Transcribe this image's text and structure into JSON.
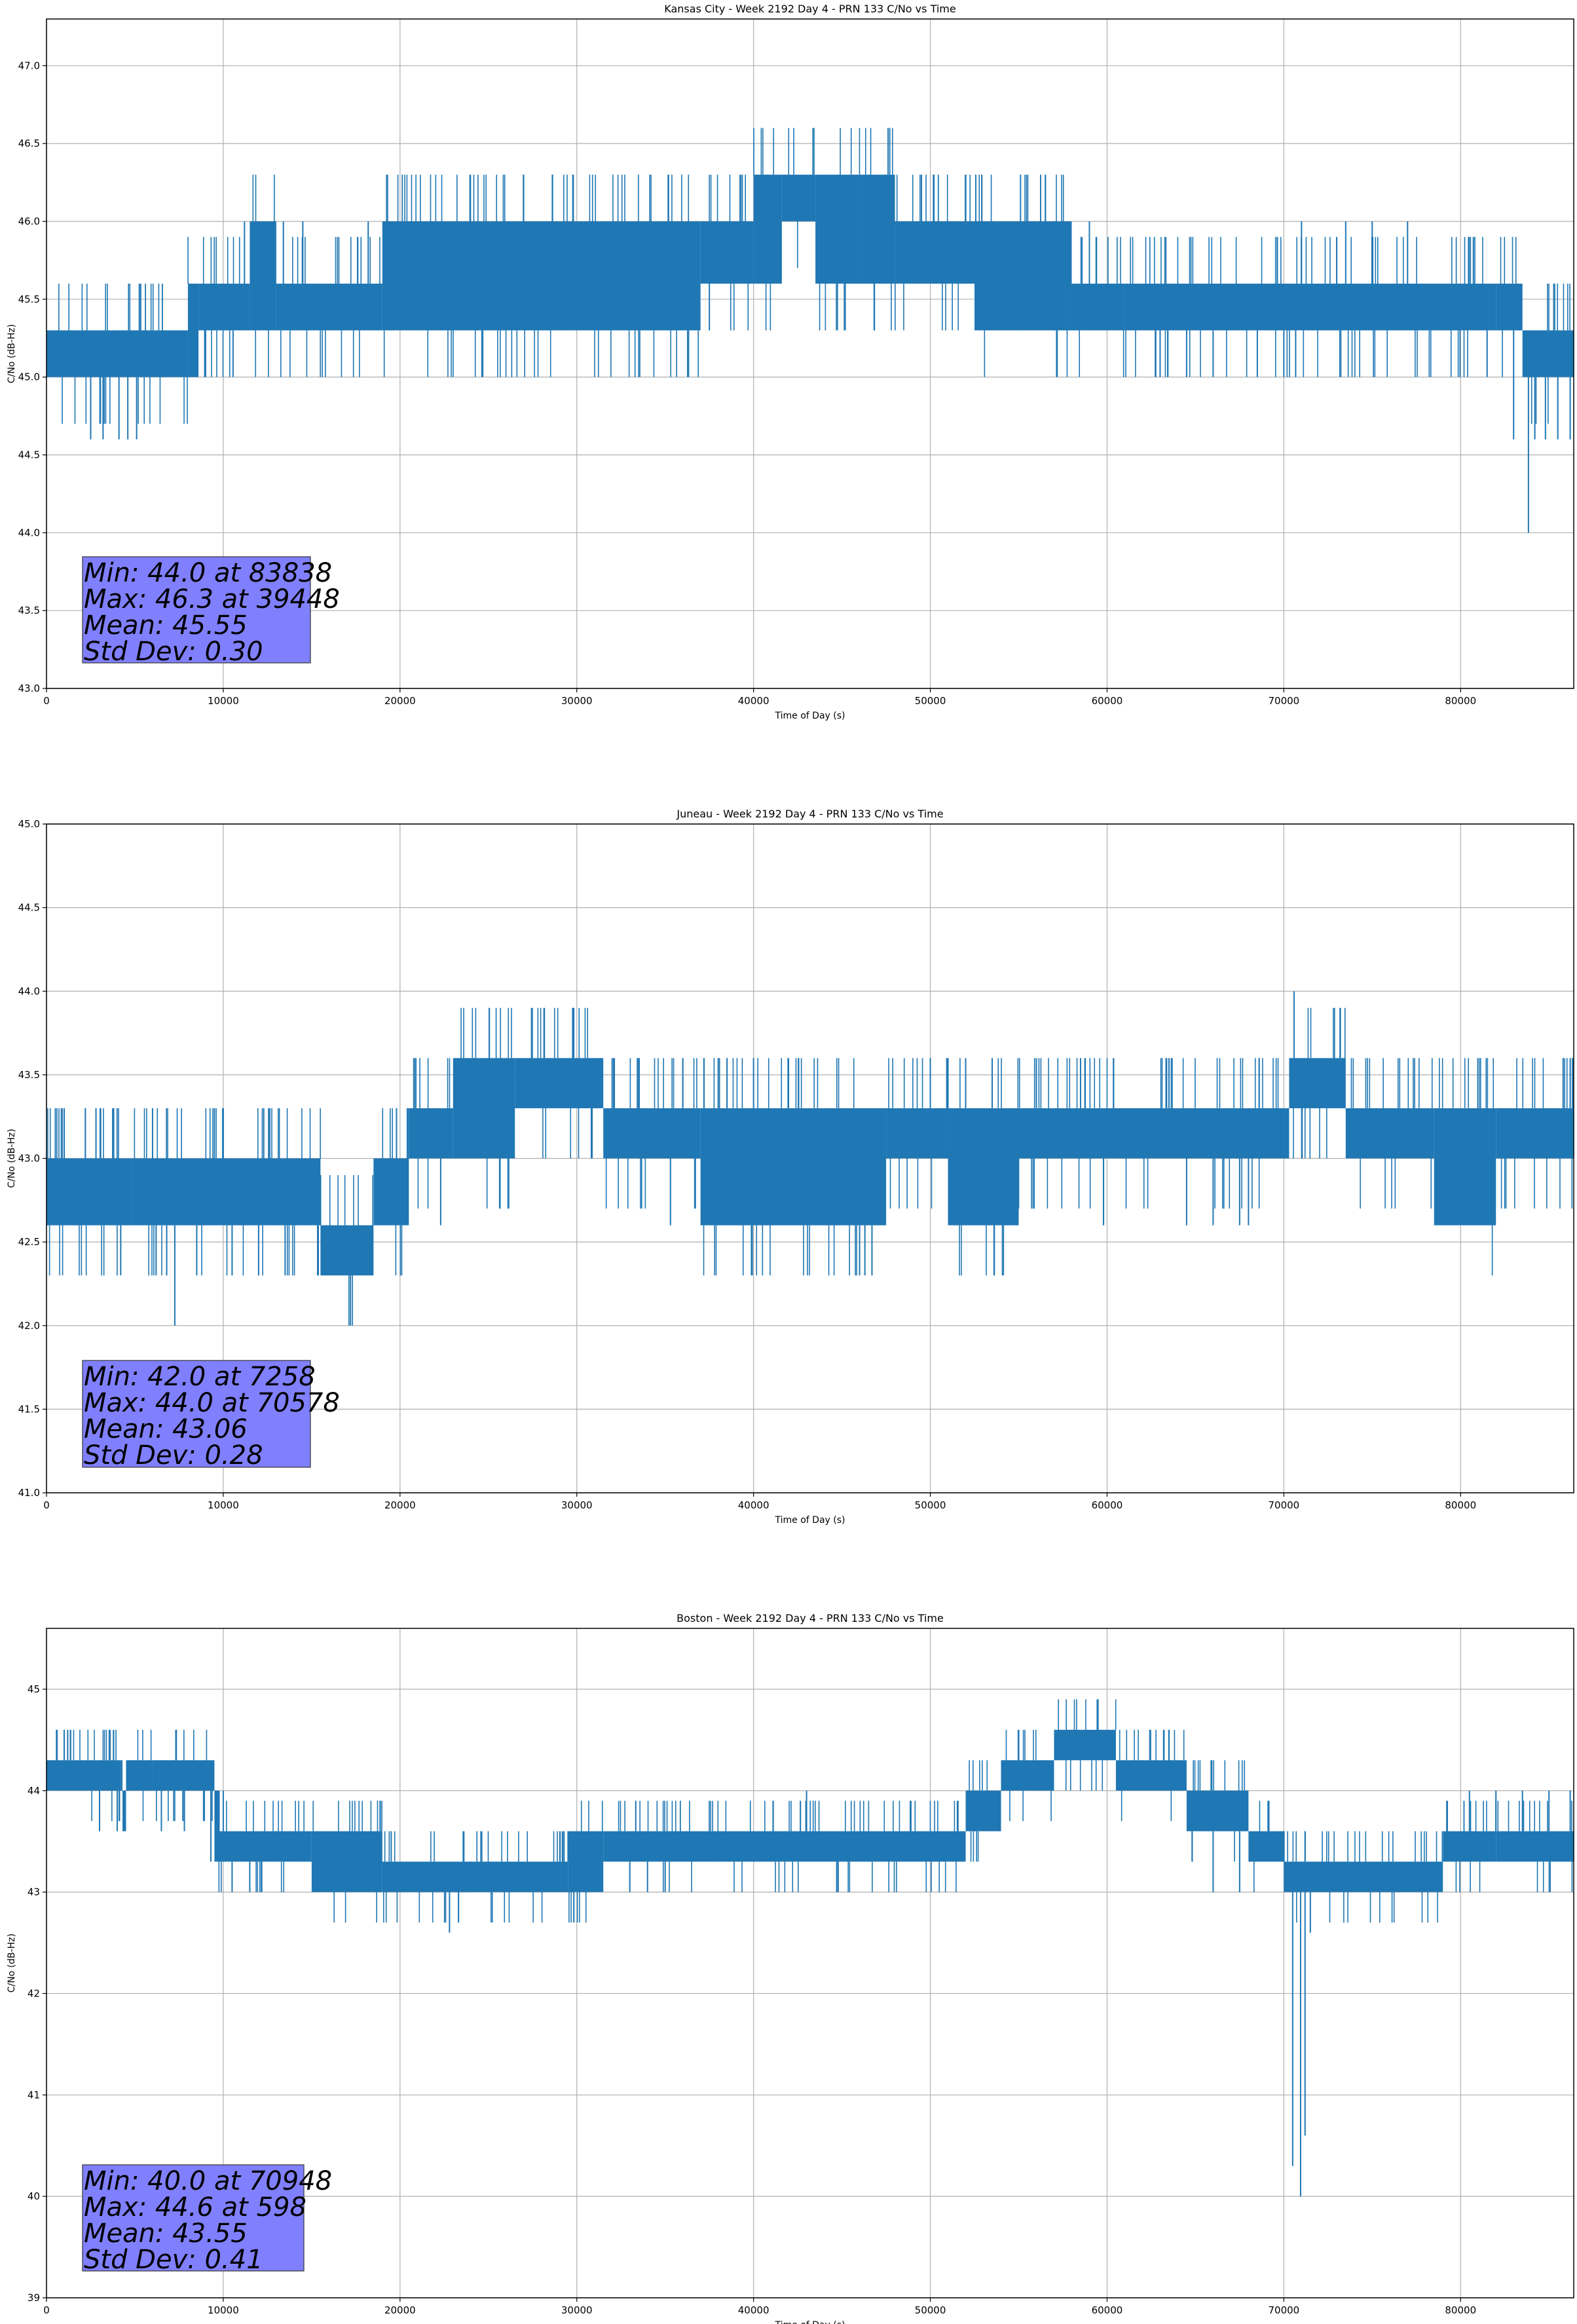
{
  "chart_data": [
    {
      "type": "line",
      "title": "Kansas City - Week 2192 Day 4 - PRN 133 C/No vs Time",
      "xlabel": "Time of Day (s)",
      "ylabel": "C/No (dB-Hz)",
      "xlim": [
        0,
        86400
      ],
      "ylim": [
        43.0,
        47.3
      ],
      "xticks": [
        0,
        10000,
        20000,
        30000,
        40000,
        50000,
        60000,
        70000,
        80000
      ],
      "yticks": [
        43.0,
        43.5,
        44.0,
        44.5,
        45.0,
        45.5,
        46.0,
        46.5,
        47.0
      ],
      "ytick_decimals": 1,
      "grid": true,
      "color": "#1f77b4",
      "stats": [
        "Min: 44.0 at 83838",
        "Max: 46.3 at 39448",
        "Mean: 45.55",
        "Std Dev: 0.30"
      ],
      "series": [
        {
          "levels": [
            [
              0,
              45.3,
              45.0
            ],
            [
              8000,
              45.6,
              45.0
            ],
            [
              8600,
              45.6,
              45.3
            ],
            [
              11500,
              46.0,
              45.3
            ],
            [
              13000,
              45.6,
              45.3
            ],
            [
              19000,
              46.0,
              45.3
            ],
            [
              37000,
              46.0,
              45.6
            ],
            [
              40000,
              46.3,
              45.6
            ],
            [
              41600,
              46.3,
              46.0
            ],
            [
              43500,
              46.3,
              45.6
            ],
            [
              46200,
              46.3,
              45.6
            ],
            [
              48000,
              46.0,
              45.6
            ],
            [
              52500,
              46.0,
              45.3
            ],
            [
              58000,
              45.6,
              45.3
            ],
            [
              61000,
              45.6,
              45.3
            ],
            [
              82000,
              45.6,
              45.3
            ],
            [
              83500,
              45.3,
              45.0
            ],
            [
              86400,
              45.3,
              45.0
            ]
          ],
          "spikes": [
            [
              2500,
              44.6
            ],
            [
              3200,
              44.6
            ],
            [
              4100,
              44.6
            ],
            [
              4600,
              44.6
            ],
            [
              5100,
              44.6
            ],
            [
              9000,
              45.0
            ],
            [
              11200,
              46.0
            ],
            [
              11800,
              46.0
            ],
            [
              12500,
              46.0
            ],
            [
              13400,
              46.0
            ],
            [
              14500,
              46.0
            ],
            [
              15000,
              45.3
            ],
            [
              17500,
              45.3
            ],
            [
              18200,
              46.0
            ],
            [
              19500,
              46.0
            ],
            [
              21000,
              46.0
            ],
            [
              37500,
              45.3
            ],
            [
              39000,
              46.0
            ],
            [
              40200,
              46.3
            ],
            [
              40800,
              46.3
            ],
            [
              41500,
              46.3
            ],
            [
              44200,
              46.3
            ],
            [
              44800,
              46.3
            ],
            [
              45800,
              46.3
            ],
            [
              46500,
              46.3
            ],
            [
              47500,
              46.3
            ],
            [
              49500,
              46.3
            ],
            [
              50200,
              46.3
            ],
            [
              53000,
              45.3
            ],
            [
              55000,
              46.0
            ],
            [
              57000,
              46.0
            ],
            [
              59000,
              46.0
            ],
            [
              63000,
              45.0
            ],
            [
              64500,
              45.0
            ],
            [
              66000,
              45.0
            ],
            [
              68500,
              45.0
            ],
            [
              70000,
              45.0
            ],
            [
              71000,
              46.0
            ],
            [
              73500,
              46.0
            ],
            [
              75000,
              46.0
            ],
            [
              77000,
              46.0
            ],
            [
              81500,
              45.0
            ],
            [
              83300,
              45.6
            ],
            [
              83838,
              44.0
            ],
            [
              84200,
              44.6
            ],
            [
              84800,
              44.6
            ],
            [
              85500,
              44.6
            ],
            [
              86200,
              44.6
            ],
            [
              83000,
              44.6
            ]
          ]
        }
      ]
    },
    {
      "type": "line",
      "title": "Juneau - Week 2192 Day 4 - PRN 133 C/No vs Time",
      "xlabel": "Time of Day (s)",
      "ylabel": "C/No (dB-Hz)",
      "xlim": [
        0,
        86400
      ],
      "ylim": [
        41.0,
        45.0
      ],
      "xticks": [
        0,
        10000,
        20000,
        30000,
        40000,
        50000,
        60000,
        70000,
        80000
      ],
      "yticks": [
        41.0,
        41.5,
        42.0,
        42.5,
        43.0,
        43.5,
        44.0,
        44.5,
        45.0
      ],
      "ytick_decimals": 1,
      "grid": true,
      "color": "#1f77b4",
      "stats": [
        "Min: 42.0 at 7258",
        "Max: 44.0 at 70578",
        "Mean: 43.06",
        "Std Dev: 0.28"
      ],
      "series": [
        {
          "levels": [
            [
              0,
              43.0,
              42.6
            ],
            [
              4800,
              43.0,
              42.6
            ],
            [
              15500,
              42.6,
              42.3
            ],
            [
              18500,
              43.0,
              42.6
            ],
            [
              20500,
              43.3,
              43.0
            ],
            [
              23000,
              43.6,
              43.0
            ],
            [
              26500,
              43.6,
              43.3
            ],
            [
              31500,
              43.3,
              43.0
            ],
            [
              37000,
              43.3,
              42.6
            ],
            [
              47500,
              43.3,
              43.0
            ],
            [
              51000,
              43.3,
              42.6
            ],
            [
              55000,
              43.3,
              43.0
            ],
            [
              70300,
              43.6,
              43.3
            ],
            [
              73500,
              43.3,
              43.0
            ],
            [
              78500,
              43.3,
              42.6
            ],
            [
              82000,
              43.3,
              43.0
            ],
            [
              86400,
              43.3,
              43.0
            ]
          ],
          "spikes": [
            [
              500,
              43.3
            ],
            [
              1000,
              43.3
            ],
            [
              2200,
              43.3
            ],
            [
              2800,
              43.3
            ],
            [
              3800,
              43.3
            ],
            [
              6000,
              43.3
            ],
            [
              7258,
              42.0
            ],
            [
              6800,
              42.3
            ],
            [
              8500,
              42.3
            ],
            [
              9500,
              43.3
            ],
            [
              10000,
              43.3
            ],
            [
              4200,
              42.3
            ],
            [
              6200,
              42.3
            ],
            [
              10500,
              42.3
            ],
            [
              12000,
              42.3
            ],
            [
              13500,
              42.3
            ],
            [
              16000,
              42.3
            ],
            [
              16800,
              42.3
            ],
            [
              17700,
              42.3
            ],
            [
              18200,
              42.3
            ],
            [
              19800,
              43.3
            ],
            [
              22300,
              42.6
            ],
            [
              23500,
              43.6
            ],
            [
              24200,
              43.6
            ],
            [
              25000,
              43.6
            ],
            [
              30500,
              43.6
            ],
            [
              32000,
              43.6
            ],
            [
              35300,
              42.6
            ],
            [
              36000,
              43.6
            ],
            [
              38000,
              43.6
            ],
            [
              38500,
              43.6
            ],
            [
              40000,
              43.6
            ],
            [
              46000,
              42.3
            ],
            [
              46300,
              42.3
            ],
            [
              46700,
              42.3
            ],
            [
              50000,
              43.6
            ],
            [
              52000,
              43.6
            ],
            [
              53500,
              43.6
            ],
            [
              56000,
              43.6
            ],
            [
              58500,
              43.6
            ],
            [
              59800,
              42.6
            ],
            [
              63500,
              43.6
            ],
            [
              64500,
              42.6
            ],
            [
              66000,
              42.6
            ],
            [
              67500,
              42.6
            ],
            [
              68000,
              42.6
            ],
            [
              68600,
              43.6
            ],
            [
              70578,
              44.0
            ],
            [
              75000,
              43.3
            ],
            [
              80500,
              42.6
            ],
            [
              85800,
              43.6
            ],
            [
              86200,
              43.6
            ]
          ]
        }
      ]
    },
    {
      "type": "line",
      "title": "Boston - Week 2192 Day 4 - PRN 133 C/No vs Time",
      "xlabel": "Time of Day (s)",
      "ylabel": "C/No (dB-Hz)",
      "xlim": [
        0,
        86400
      ],
      "ylim": [
        39.0,
        45.6
      ],
      "xticks": [
        0,
        10000,
        20000,
        30000,
        40000,
        50000,
        60000,
        70000,
        80000
      ],
      "yticks": [
        39,
        40,
        41,
        42,
        43,
        44,
        45
      ],
      "ytick_decimals": 0,
      "grid": true,
      "color": "#1f77b4",
      "stats": [
        "Min: 40.0 at 70948",
        "Max: 44.6 at 598",
        "Mean: 43.55",
        "Std Dev: 0.41"
      ],
      "series": [
        {
          "levels": [
            [
              0,
              44.3,
              44.0
            ],
            [
              4200,
              44.3,
              44.0
            ],
            [
              4500,
              44.3,
              44.0
            ],
            [
              6000,
              44.3,
              44.0
            ],
            [
              4300,
              44.0,
              43.6
            ],
            [
              9500,
              44.0,
              43.3
            ],
            [
              9800,
              43.6,
              43.3
            ],
            [
              15000,
              43.6,
              43.0
            ],
            [
              19000,
              43.3,
              43.0
            ],
            [
              29500,
              43.6,
              43.0
            ],
            [
              31500,
              43.6,
              43.3
            ],
            [
              52000,
              44.0,
              43.6
            ],
            [
              54000,
              44.3,
              44.0
            ],
            [
              57000,
              44.6,
              44.3
            ],
            [
              60500,
              44.3,
              44.0
            ],
            [
              64500,
              44.0,
              43.6
            ],
            [
              68000,
              43.6,
              43.3
            ],
            [
              70000,
              43.3,
              43.0
            ],
            [
              79000,
              43.6,
              43.3
            ],
            [
              82000,
              43.6,
              43.3
            ],
            [
              86400,
              43.6,
              43.3
            ]
          ],
          "spikes": [
            [
              598,
              44.6
            ],
            [
              1000,
              44.6
            ],
            [
              1200,
              44.6
            ],
            [
              3000,
              43.6
            ],
            [
              4000,
              43.6
            ],
            [
              6500,
              43.6
            ],
            [
              7800,
              43.6
            ],
            [
              8200,
              44.0
            ],
            [
              8800,
              44.0
            ],
            [
              9300,
              43.3
            ],
            [
              10000,
              44.0
            ],
            [
              10500,
              43.0
            ],
            [
              11500,
              43.0
            ],
            [
              13000,
              43.6
            ],
            [
              14500,
              43.6
            ],
            [
              18000,
              43.0
            ],
            [
              19500,
              43.6
            ],
            [
              22000,
              43.0
            ],
            [
              22800,
              42.6
            ],
            [
              24000,
              43.3
            ],
            [
              28500,
              43.0
            ],
            [
              30000,
              43.6
            ],
            [
              33000,
              43.0
            ],
            [
              34000,
              43.0
            ],
            [
              35000,
              43.0
            ],
            [
              38000,
              43.6
            ],
            [
              41000,
              43.6
            ],
            [
              43000,
              44.0
            ],
            [
              46000,
              43.3
            ],
            [
              49000,
              43.3
            ],
            [
              52500,
              44.0
            ],
            [
              55000,
              44.6
            ],
            [
              58000,
              44.6
            ],
            [
              59500,
              44.6
            ],
            [
              62000,
              44.0
            ],
            [
              63500,
              44.3
            ],
            [
              66000,
              43.0
            ],
            [
              67500,
              43.0
            ],
            [
              69000,
              43.3
            ],
            [
              70948,
              40.0
            ],
            [
              70500,
              40.3
            ],
            [
              71200,
              40.6
            ],
            [
              71500,
              42.6
            ],
            [
              73000,
              43.0
            ],
            [
              75000,
              43.0
            ],
            [
              77000,
              43.0
            ],
            [
              78500,
              43.0
            ],
            [
              80500,
              44.0
            ],
            [
              82000,
              44.0
            ],
            [
              83500,
              44.0
            ],
            [
              85000,
              44.0
            ],
            [
              86200,
              44.0
            ]
          ]
        }
      ]
    }
  ]
}
